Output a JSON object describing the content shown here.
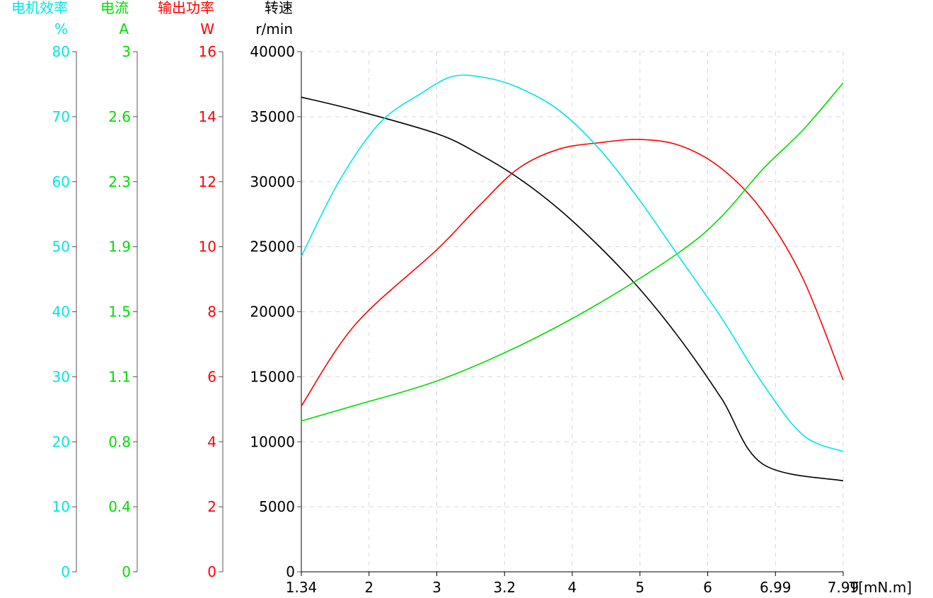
{
  "chart_data": {
    "type": "line",
    "x_axis": {
      "label": "T[mN.m]",
      "ticks": [
        "1.34",
        "2",
        "3",
        "3.2",
        "4",
        "5",
        "6",
        "6.99",
        "7.99"
      ],
      "range": [
        1.34,
        7.99
      ]
    },
    "axes": [
      {
        "id": "speed",
        "title": "转速",
        "unit": "r/min",
        "color": "#000000",
        "range": [
          0,
          40000
        ],
        "ticks": [
          "0",
          "5000",
          "10000",
          "15000",
          "20000",
          "25000",
          "30000",
          "35000",
          "40000"
        ]
      },
      {
        "id": "power",
        "title": "输出功率",
        "unit": "W",
        "color": "#ff0000",
        "range": [
          0,
          16
        ],
        "ticks": [
          "0",
          "2",
          "4",
          "6",
          "8",
          "10",
          "12",
          "14",
          "16"
        ]
      },
      {
        "id": "current",
        "title": "电流",
        "unit": "A",
        "color": "#00dd00",
        "range": [
          0,
          3
        ],
        "ticks": [
          "0",
          "0.4",
          "0.8",
          "1.1",
          "1.5",
          "1.9",
          "2.3",
          "2.6",
          "3"
        ]
      },
      {
        "id": "efficiency",
        "title": "电机效率",
        "unit": "%",
        "color": "#00e5e5",
        "range": [
          0,
          80
        ],
        "ticks": [
          "0",
          "10",
          "20",
          "30",
          "40",
          "50",
          "60",
          "70",
          "80"
        ]
      }
    ],
    "series": [
      {
        "axis": "speed",
        "color": "#000000",
        "points": [
          [
            1.34,
            36500
          ],
          [
            2.0,
            35500
          ],
          [
            3.0,
            33700
          ],
          [
            3.5,
            32200
          ],
          [
            4.0,
            30300
          ],
          [
            4.5,
            27900
          ],
          [
            5.0,
            25000
          ],
          [
            5.5,
            21700
          ],
          [
            6.0,
            17800
          ],
          [
            6.5,
            13300
          ],
          [
            7.0,
            8300
          ],
          [
            7.99,
            7000
          ]
        ]
      },
      {
        "axis": "power",
        "color": "#ff0000",
        "points": [
          [
            1.34,
            5.1
          ],
          [
            2.0,
            7.6
          ],
          [
            3.0,
            9.9
          ],
          [
            3.5,
            11.2
          ],
          [
            4.0,
            12.4
          ],
          [
            4.5,
            13.0
          ],
          [
            5.0,
            13.2
          ],
          [
            5.5,
            13.3
          ],
          [
            6.0,
            13.1
          ],
          [
            6.5,
            12.4
          ],
          [
            7.0,
            11.1
          ],
          [
            7.5,
            9.0
          ],
          [
            7.99,
            5.9
          ]
        ]
      },
      {
        "axis": "current",
        "color": "#00dd00",
        "points": [
          [
            1.34,
            0.87
          ],
          [
            2.0,
            0.96
          ],
          [
            3.0,
            1.1
          ],
          [
            4.0,
            1.3
          ],
          [
            5.0,
            1.55
          ],
          [
            6.0,
            1.85
          ],
          [
            6.5,
            2.05
          ],
          [
            7.0,
            2.32
          ],
          [
            7.5,
            2.55
          ],
          [
            7.99,
            2.82
          ]
        ]
      },
      {
        "axis": "efficiency",
        "color": "#00e5e5",
        "points": [
          [
            1.34,
            48.5
          ],
          [
            1.8,
            60.0
          ],
          [
            2.3,
            69.0
          ],
          [
            2.8,
            73.5
          ],
          [
            3.2,
            76.2
          ],
          [
            3.6,
            76.0
          ],
          [
            4.0,
            74.5
          ],
          [
            4.5,
            71.0
          ],
          [
            5.0,
            65.0
          ],
          [
            5.5,
            57.0
          ],
          [
            6.0,
            48.0
          ],
          [
            6.5,
            39.0
          ],
          [
            7.0,
            29.0
          ],
          [
            7.5,
            21.0
          ],
          [
            7.99,
            18.5
          ]
        ]
      }
    ],
    "grid": true
  }
}
